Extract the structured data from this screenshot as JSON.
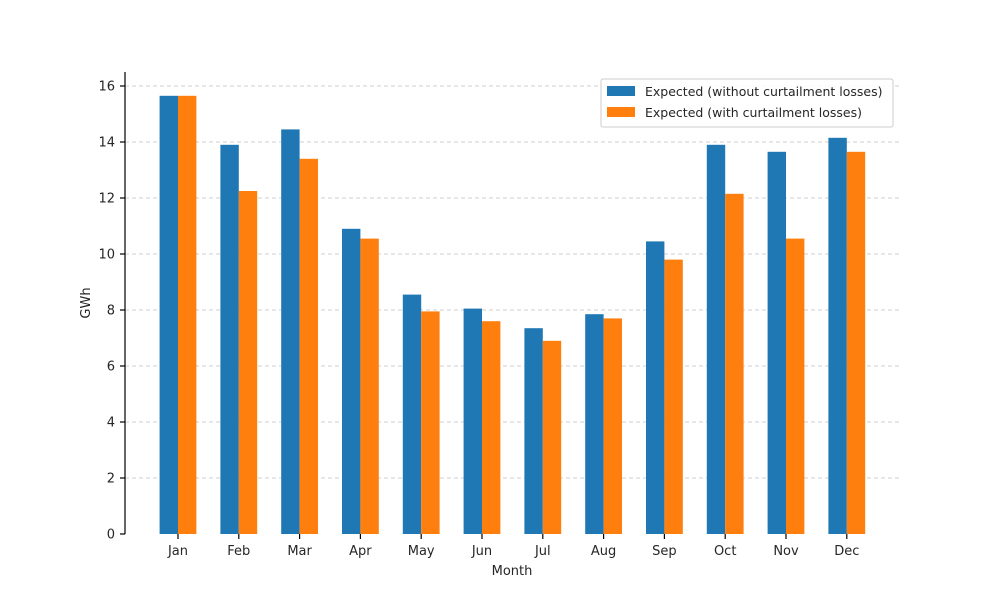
{
  "chart_data": {
    "type": "bar",
    "title": "",
    "xlabel": "Month",
    "ylabel": "GWh",
    "categories": [
      "Jan",
      "Feb",
      "Mar",
      "Apr",
      "May",
      "Jun",
      "Jul",
      "Aug",
      "Sep",
      "Oct",
      "Nov",
      "Dec"
    ],
    "series": [
      {
        "name": "Expected (without curtailment losses)",
        "color": "#1f77b4",
        "values": [
          15.65,
          13.9,
          14.45,
          10.9,
          8.55,
          8.05,
          7.35,
          7.85,
          10.45,
          13.9,
          13.65,
          14.15
        ]
      },
      {
        "name": "Expected (with curtailment losses)",
        "color": "#ff7f0e",
        "values": [
          15.65,
          12.25,
          13.4,
          10.55,
          7.95,
          7.6,
          6.9,
          7.7,
          9.8,
          12.15,
          10.55,
          13.65
        ]
      }
    ],
    "ylim": [
      0,
      16.5
    ],
    "yticks": [
      0,
      2,
      4,
      6,
      8,
      10,
      12,
      14,
      16
    ],
    "grid": "y-dashed",
    "legend_position": "top-right"
  }
}
